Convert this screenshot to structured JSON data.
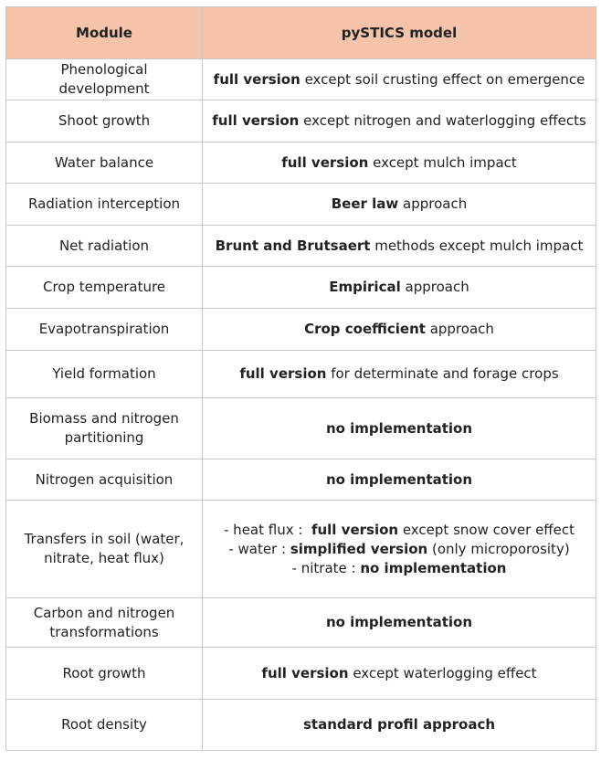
{
  "header": {
    "module": "Module",
    "model": "pySTICS model"
  },
  "rows": [
    {
      "module": "Phenological development",
      "bold": "full version",
      "rest": " except soil crusting effect on emergence"
    },
    {
      "module": "Shoot growth",
      "bold": "full version",
      "rest": " except nitrogen and waterlogging effects"
    },
    {
      "module": "Water balance",
      "bold": "full version",
      "rest": " except mulch impact"
    },
    {
      "module": "Radiation interception",
      "bold": "Beer law",
      "rest": " approach"
    },
    {
      "module": "Net radiation",
      "bold": "Brunt and Brutsaert",
      "rest": " methods except mulch impact"
    },
    {
      "module": "Crop temperature",
      "bold": "Empirical",
      "rest": " approach"
    },
    {
      "module": "Evapotranspiration",
      "bold": "Crop coefficient",
      "rest": " approach"
    },
    {
      "module": "Yield formation",
      "bold": "full version",
      "rest": " for determinate and forage crops"
    },
    {
      "module1": "Biomass and nitrogen",
      "module2": "partitioning",
      "bold": "no implementation",
      "rest": ""
    },
    {
      "module": "Nitrogen acquisition",
      "bold": "no implementation",
      "rest": ""
    },
    {
      "module1": "Transfers in soil (water,",
      "module2": "nitrate, heat flux)",
      "lines": [
        {
          "pre": "- heat flux :  ",
          "bold": "full version",
          "rest": " except snow cover effect"
        },
        {
          "pre": "- water : ",
          "bold": "simplified version",
          "rest": " (only microporosity)"
        },
        {
          "pre": "- nitrate : ",
          "bold": "no implementation",
          "rest": ""
        }
      ]
    },
    {
      "module1": "Carbon and nitrogen",
      "module2": "transformations",
      "bold": "no implementation",
      "rest": ""
    },
    {
      "module": "Root growth",
      "bold": "full version",
      "rest": " except waterlogging effect"
    },
    {
      "module": "Root density",
      "bold": "standard profil approach",
      "rest": ""
    }
  ]
}
